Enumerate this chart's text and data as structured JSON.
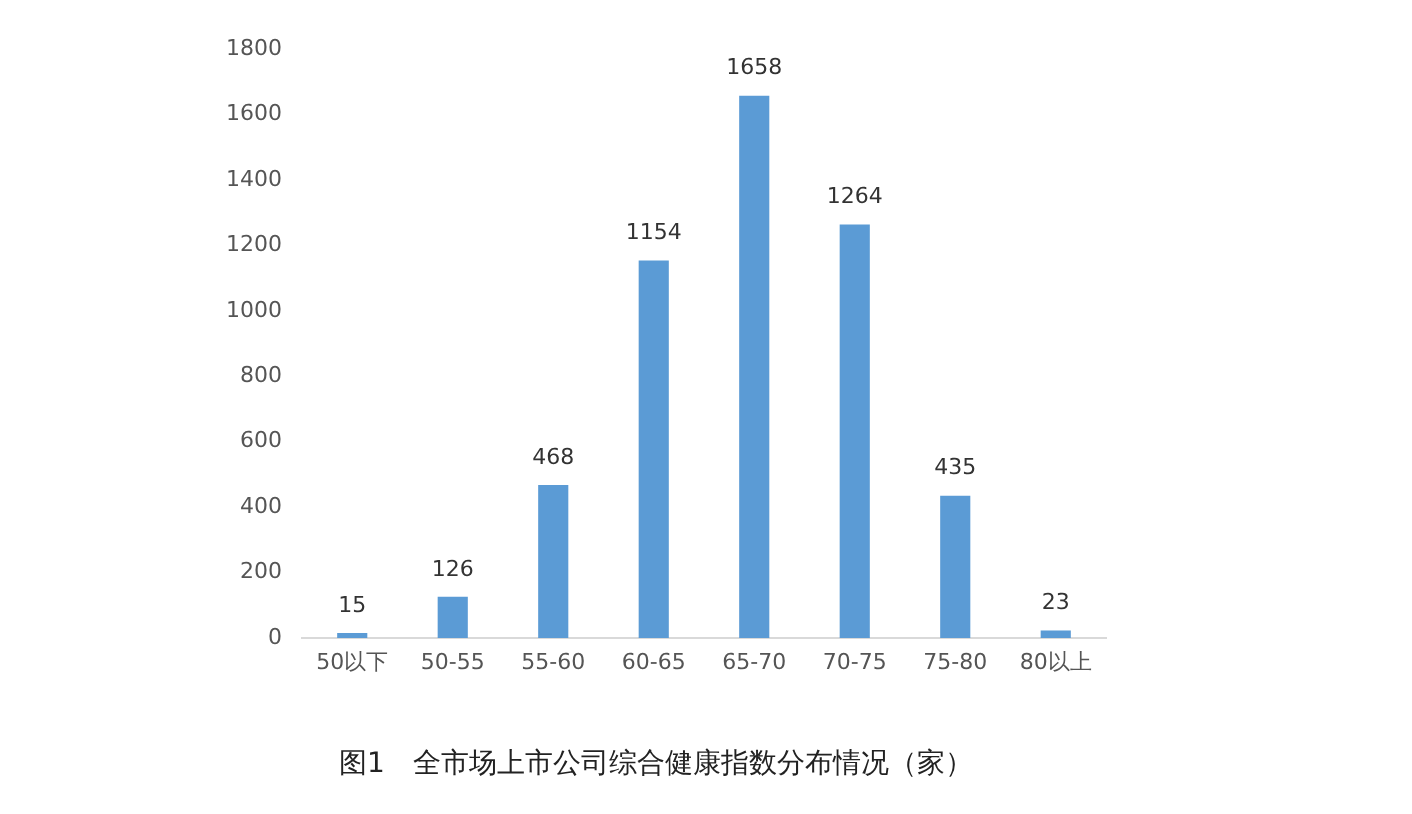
{
  "chart_data": {
    "type": "bar",
    "title": "图1　全市场上市公司综合健康指数分布情况（家）",
    "categories": [
      "50以下",
      "50-55",
      "55-60",
      "60-65",
      "65-70",
      "70-75",
      "75-80",
      "80以上"
    ],
    "values": [
      15,
      126,
      468,
      1154,
      1658,
      1264,
      435,
      23
    ],
    "color": "#5b9bd5",
    "ylim": [
      0,
      1800
    ],
    "yticks": [
      0,
      200,
      400,
      600,
      800,
      1000,
      1200,
      1400,
      1600,
      1800
    ],
    "grid": false,
    "legend": false,
    "data_labels": true
  }
}
